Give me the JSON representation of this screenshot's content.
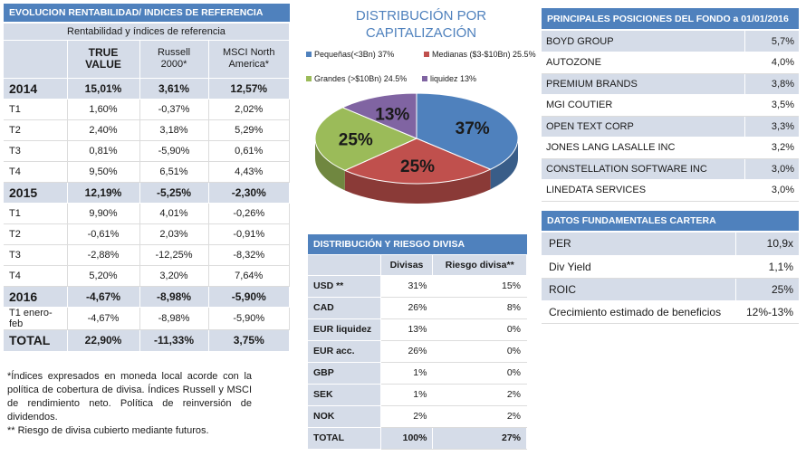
{
  "left": {
    "header": "EVOLUCION RENTABILIDAD/ INDICES DE REFERENCIA",
    "subheader": "Rentabilidad  y índices de referencia",
    "columns": [
      "TRUE VALUE",
      "Russell 2000*",
      "MSCI North America*"
    ],
    "rows": [
      {
        "label": "2014",
        "values": [
          "15,01%",
          "3,61%",
          "12,57%"
        ],
        "kind": "year"
      },
      {
        "label": "T1",
        "values": [
          "1,60%",
          "-0,37%",
          "2,02%"
        ],
        "kind": "q"
      },
      {
        "label": "T2",
        "values": [
          "2,40%",
          "3,18%",
          "5,29%"
        ],
        "kind": "q"
      },
      {
        "label": "T3",
        "values": [
          "0,81%",
          "-5,90%",
          "0,61%"
        ],
        "kind": "q"
      },
      {
        "label": "T4",
        "values": [
          "9,50%",
          "6,51%",
          "4,43%"
        ],
        "kind": "q"
      },
      {
        "label": "2015",
        "values": [
          "12,19%",
          "-5,25%",
          "-2,30%"
        ],
        "kind": "year"
      },
      {
        "label": "T1",
        "values": [
          "9,90%",
          "4,01%",
          "-0,26%"
        ],
        "kind": "q"
      },
      {
        "label": "T2",
        "values": [
          "-0,61%",
          "2,03%",
          "-0,91%"
        ],
        "kind": "q"
      },
      {
        "label": "T3",
        "values": [
          "-2,88%",
          "-12,25%",
          "-8,32%"
        ],
        "kind": "q"
      },
      {
        "label": "T4",
        "values": [
          "5,20%",
          "3,20%",
          "7,64%"
        ],
        "kind": "q"
      },
      {
        "label": "2016",
        "values": [
          "-4,67%",
          "-8,98%",
          "-5,90%"
        ],
        "kind": "year"
      },
      {
        "label": "T1 enero-feb",
        "values": [
          "-4,67%",
          "-8,98%",
          "-5,90%"
        ],
        "kind": "q"
      },
      {
        "label": "TOTAL",
        "values": [
          "22,90%",
          "-11,33%",
          "3,75%"
        ],
        "kind": "total"
      }
    ],
    "footnote_1": "*Índices expresados en moneda local acorde con la política de cobertura de divisa. Índices Russell y MSCI de rendimiento neto. Política de reinversión de dividendos.",
    "footnote_2": "** Riesgo de divisa cubierto mediante futuros."
  },
  "chart_data": {
    "type": "pie",
    "title": "DISTRIBUCIÓN POR CAPITALIZACIÓN",
    "legend": [
      {
        "label": "Pequeñas(<3Bn)  37%",
        "color": "#4f81bd"
      },
      {
        "label": "Medianas ($3-$10Bn) 25.5%",
        "color": "#c0504d"
      },
      {
        "label": "Grandes (>$10Bn)  24.5%",
        "color": "#9bbb59"
      },
      {
        "label": "liquidez  13%",
        "color": "#8064a2"
      }
    ],
    "slices": [
      {
        "name": "Pequeñas(<3Bn)",
        "value": 37,
        "label": "37%",
        "color": "#4f81bd"
      },
      {
        "name": "Medianas ($3-$10Bn)",
        "value": 25.5,
        "label": "25%",
        "color": "#c0504d"
      },
      {
        "name": "Grandes (>$10Bn)",
        "value": 24.5,
        "label": "25%",
        "color": "#9bbb59"
      },
      {
        "name": "liquidez",
        "value": 13,
        "label": "13%",
        "color": "#8064a2"
      }
    ]
  },
  "currency": {
    "header": "DISTRIBUCIÓN  Y RIESGO DIVISA",
    "columns": [
      "",
      "Divisas",
      "Riesgo divisa**"
    ],
    "rows": [
      {
        "label": "USD **",
        "values": [
          "31%",
          "15%"
        ]
      },
      {
        "label": "CAD",
        "values": [
          "26%",
          "8%"
        ]
      },
      {
        "label": "EUR liquidez",
        "values": [
          "13%",
          "0%"
        ]
      },
      {
        "label": "EUR acc.",
        "values": [
          "26%",
          "0%"
        ]
      },
      {
        "label": "GBP",
        "values": [
          "1%",
          "0%"
        ]
      },
      {
        "label": "SEK",
        "values": [
          "1%",
          "2%"
        ]
      },
      {
        "label": "NOK",
        "values": [
          "2%",
          "2%"
        ]
      },
      {
        "label": "TOTAL",
        "values": [
          "100%",
          "27%"
        ]
      }
    ]
  },
  "positions": {
    "header": "PRINCIPALES POSICIONES DEL FONDO a 01/01/2016",
    "rows": [
      {
        "name": "BOYD GROUP",
        "value": "5,7%"
      },
      {
        "name": "AUTOZONE",
        "value": "4,0%"
      },
      {
        "name": "PREMIUM BRANDS",
        "value": "3,8%"
      },
      {
        "name": "MGI COUTIER",
        "value": "3,5%"
      },
      {
        "name": "OPEN TEXT CORP",
        "value": "3,3%"
      },
      {
        "name": "JONES LANG LASALLE INC",
        "value": "3,2%"
      },
      {
        "name": "CONSTELLATION SOFTWARE INC",
        "value": "3,0%"
      },
      {
        "name": "LINEDATA SERVICES",
        "value": "3,0%"
      }
    ]
  },
  "fundamentals": {
    "header": "DATOS FUNDAMENTALES CARTERA",
    "rows": [
      {
        "name": "PER",
        "value": "10,9x"
      },
      {
        "name": "Div Yield",
        "value": "1,1%"
      },
      {
        "name": "ROIC",
        "value": "25%"
      },
      {
        "name": "Crecimiento estimado de  beneficios",
        "value": "12%-13%"
      }
    ]
  }
}
